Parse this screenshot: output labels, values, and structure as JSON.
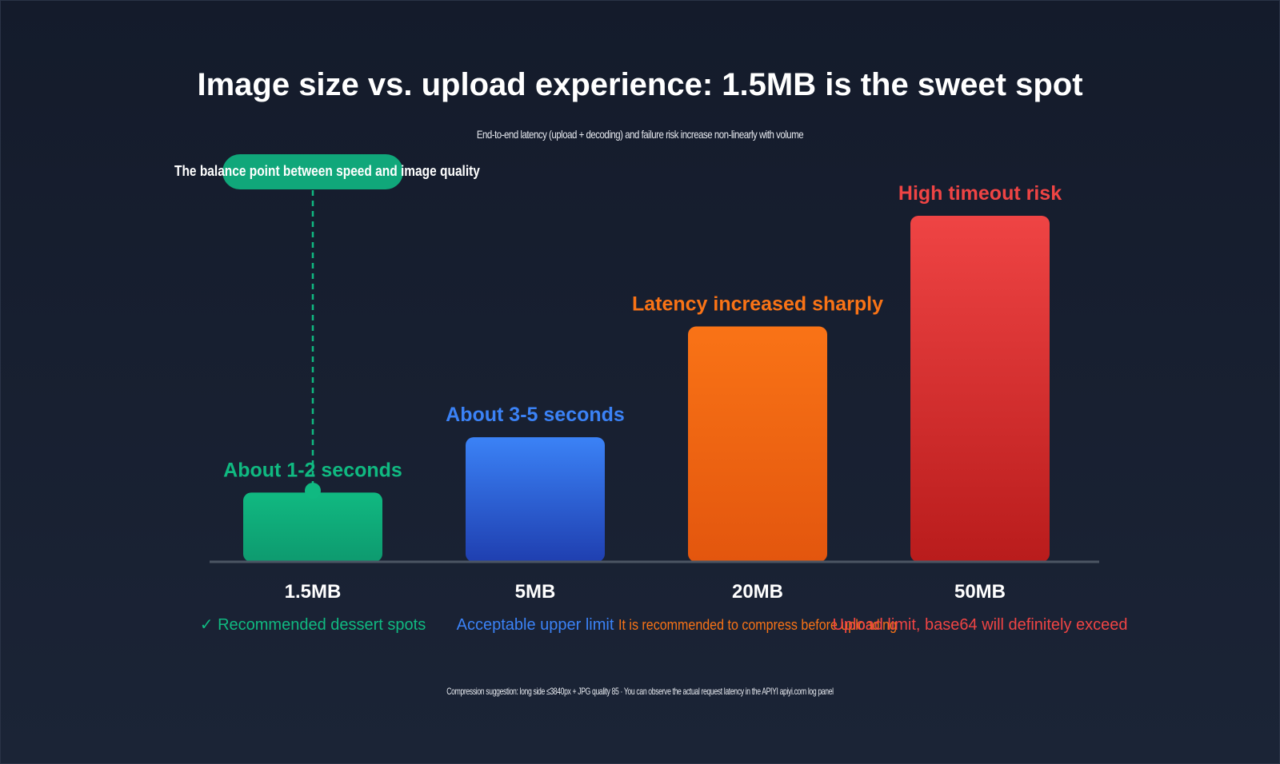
{
  "colors": {
    "background": "#161e2e",
    "green": "#10b981",
    "blue": "#3b82f6",
    "orange": "#f97316",
    "red": "#ef4444",
    "axis": "#4b5563"
  },
  "chart_data": {
    "type": "bar",
    "title": "Image size vs. upload experience: 1.5MB is the sweet spot",
    "subtitle": "End-to-end latency (upload + decoding) and failure risk increase non-linearly with volume",
    "categories": [
      "1.5MB",
      "5MB",
      "20MB",
      "50MB"
    ],
    "values": [
      1,
      1.8,
      3.4,
      5
    ],
    "ylim": [
      0,
      5
    ],
    "value_labels": [
      "About 1-2 seconds",
      "About 3-5 seconds",
      "Latency increased sharply",
      "High timeout risk"
    ],
    "notes": [
      "✓ Recommended dessert spots",
      "Acceptable upper limit",
      "It is recommended to compress before uploading",
      "Upload limit, base64 will definitely exceed"
    ],
    "bar_colors": [
      [
        "#10b981",
        "#0e9a6f"
      ],
      [
        "#3b82f6",
        "#1f3fb0"
      ],
      [
        "#f97316",
        "#e3560e"
      ],
      [
        "#ef4444",
        "#b91c1c"
      ]
    ],
    "label_colors": [
      "#10b981",
      "#3b82f6",
      "#f97316",
      "#ef4444"
    ],
    "annotation": "The balance point between speed and image quality",
    "footer": "Compression suggestion: long side ≤3840px + JPG quality 85 · You can observe the actual request latency in the APIYI apiyi.com log panel",
    "grid": false,
    "legend": "none"
  }
}
